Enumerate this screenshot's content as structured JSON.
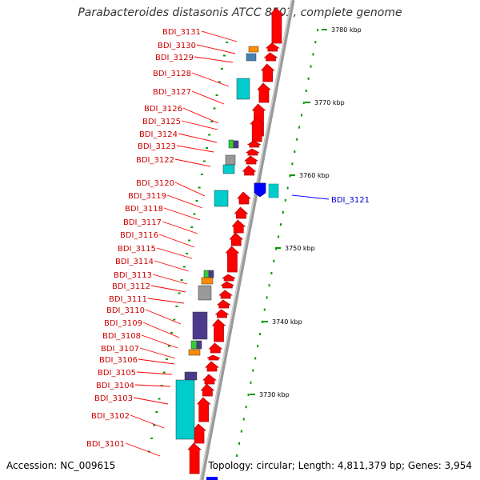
{
  "title": "Parabacteroides distasonis ATCC 8503, complete genome",
  "accession": "Accession: NC_009615",
  "topology": "Topology: circular; Length: 4,811,379 bp; Genes: 3,954",
  "colors": {
    "forward_gene": "#ff0000",
    "reverse_gene": "#0000ff",
    "label_forward": "#cc0000",
    "label_reverse": "#0000cc",
    "backbone": "#999999",
    "tick": "#009900",
    "domain_cyan": "#00cccc",
    "domain_purple": "#4b3a8c",
    "domain_orange": "#ff8c00",
    "domain_steel": "#4682b4",
    "domain_gray": "#999999",
    "domain_green": "#33cc33"
  },
  "scale": {
    "unit": "kbp",
    "ticks": [
      {
        "label": "3780 kbp"
      },
      {
        "label": "3770 kbp"
      },
      {
        "label": "3760 kbp"
      },
      {
        "label": "3750 kbp"
      },
      {
        "label": "3740 kbp"
      },
      {
        "label": "3730 kbp"
      }
    ]
  },
  "genes": [
    {
      "name": "BDI_3131",
      "strand": "+"
    },
    {
      "name": "BDI_3130",
      "strand": "+"
    },
    {
      "name": "BDI_3129",
      "strand": "+"
    },
    {
      "name": "BDI_3128",
      "strand": "+"
    },
    {
      "name": "BDI_3127",
      "strand": "+"
    },
    {
      "name": "BDI_3126",
      "strand": "+"
    },
    {
      "name": "BDI_3125",
      "strand": "+"
    },
    {
      "name": "BDI_3124",
      "strand": "+"
    },
    {
      "name": "BDI_3123",
      "strand": "+"
    },
    {
      "name": "BDI_3122",
      "strand": "+"
    },
    {
      "name": "BDI_3121",
      "strand": "-"
    },
    {
      "name": "BDI_3120",
      "strand": "+"
    },
    {
      "name": "BDI_3119",
      "strand": "+"
    },
    {
      "name": "BDI_3118",
      "strand": "+"
    },
    {
      "name": "BDI_3117",
      "strand": "+"
    },
    {
      "name": "BDI_3116",
      "strand": "+"
    },
    {
      "name": "BDI_3115",
      "strand": "+"
    },
    {
      "name": "BDI_3114",
      "strand": "+"
    },
    {
      "name": "BDI_3113",
      "strand": "+"
    },
    {
      "name": "BDI_3112",
      "strand": "+"
    },
    {
      "name": "BDI_3111",
      "strand": "+"
    },
    {
      "name": "BDI_3110",
      "strand": "+"
    },
    {
      "name": "BDI_3109",
      "strand": "+"
    },
    {
      "name": "BDI_3108",
      "strand": "+"
    },
    {
      "name": "BDI_3107",
      "strand": "+"
    },
    {
      "name": "BDI_3106",
      "strand": "+"
    },
    {
      "name": "BDI_3105",
      "strand": "+"
    },
    {
      "name": "BDI_3104",
      "strand": "+"
    },
    {
      "name": "BDI_3103",
      "strand": "+"
    },
    {
      "name": "BDI_3102",
      "strand": "+"
    },
    {
      "name": "BDI_3101",
      "strand": "+"
    }
  ]
}
